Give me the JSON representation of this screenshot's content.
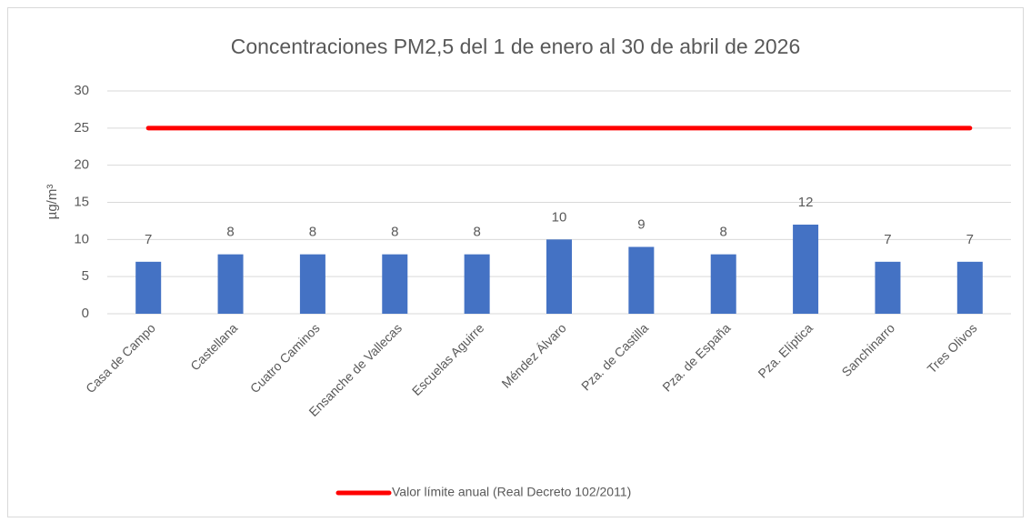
{
  "chart_data": {
    "type": "bar",
    "title": "Concentraciones PM2,5 del 1 de enero al 30 de abril de 2026",
    "y_label": "µg/m³",
    "categories": [
      "Casa de Campo",
      "Castellana",
      "Cuatro Caminos",
      "Ensanche de Vallecas",
      "Escuelas Aguirre",
      "Méndez Álvaro",
      "Pza. de Castilla",
      "Pza. de España",
      "Pza. Elíptica",
      "Sanchinarro",
      "Tres Olivos"
    ],
    "series": [
      {
        "type": "bar",
        "color": "#4472c4",
        "values": [
          7,
          8,
          8,
          8,
          8,
          10,
          9,
          8,
          12,
          7,
          7
        ]
      },
      {
        "type": "line",
        "name": "Valor límite anual (Real Decreto 102/2011)",
        "color": "#ff0000",
        "values": [
          25,
          25,
          25,
          25,
          25,
          25,
          25,
          25,
          25,
          25,
          25
        ]
      }
    ],
    "ylim": [
      0,
      30
    ],
    "yticks": [
      0,
      5,
      10,
      15,
      20,
      25,
      30
    ],
    "grid": true,
    "legend": "bottom"
  }
}
